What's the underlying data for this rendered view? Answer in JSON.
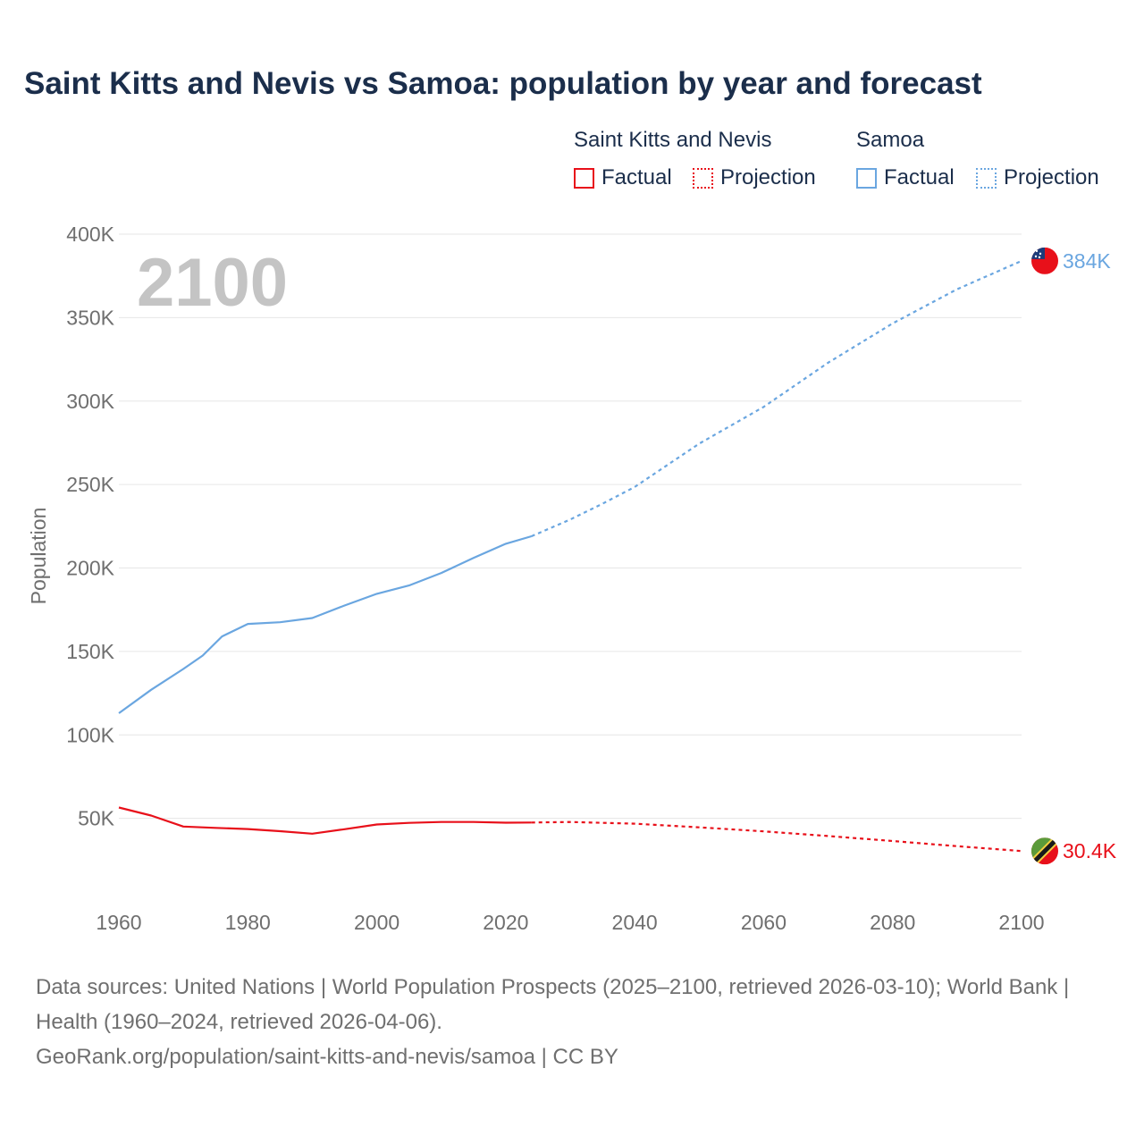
{
  "title": "Saint Kitts and Nevis vs Samoa: population by year and forecast",
  "legend": {
    "groups": [
      {
        "name": "Saint Kitts and Nevis",
        "color": "#e8101a",
        "items": [
          {
            "label": "Factual",
            "style": "solid"
          },
          {
            "label": "Projection",
            "style": "dotted"
          }
        ]
      },
      {
        "name": "Samoa",
        "color": "#6aa6e0",
        "items": [
          {
            "label": "Factual",
            "style": "solid"
          },
          {
            "label": "Projection",
            "style": "dotted"
          }
        ]
      }
    ]
  },
  "year_watermark": "2100",
  "chart_data": {
    "type": "line",
    "title": "Saint Kitts and Nevis vs Samoa: population by year and forecast",
    "xlabel": "",
    "ylabel": "Population",
    "xlim": [
      1960,
      2100
    ],
    "ylim": [
      0,
      400000
    ],
    "x_ticks": [
      1960,
      1980,
      2000,
      2020,
      2040,
      2060,
      2080,
      2100
    ],
    "y_ticks": [
      {
        "value": 50000,
        "label": "50K"
      },
      {
        "value": 100000,
        "label": "100K"
      },
      {
        "value": 150000,
        "label": "150K"
      },
      {
        "value": 200000,
        "label": "200K"
      },
      {
        "value": 250000,
        "label": "250K"
      },
      {
        "value": 300000,
        "label": "300K"
      },
      {
        "value": 350000,
        "label": "350K"
      },
      {
        "value": 400000,
        "label": "400K"
      }
    ],
    "grid": true,
    "series": [
      {
        "name": "Saint Kitts and Nevis",
        "color": "#e8101a",
        "end_label": "30.4K",
        "factual": {
          "x": [
            1960,
            1965,
            1970,
            1975,
            1980,
            1985,
            1990,
            1995,
            2000,
            2005,
            2010,
            2015,
            2020,
            2024
          ],
          "y": [
            56500,
            51700,
            45100,
            44300,
            43600,
            42300,
            40800,
            43500,
            46300,
            47300,
            47800,
            47800,
            47400,
            47500
          ]
        },
        "projection": {
          "x": [
            2024,
            2030,
            2040,
            2050,
            2060,
            2070,
            2080,
            2090,
            2100
          ],
          "y": [
            47500,
            47800,
            46800,
            44600,
            42200,
            39400,
            36400,
            33300,
            30400
          ]
        }
      },
      {
        "name": "Samoa",
        "color": "#6aa6e0",
        "end_label": "384K",
        "factual": {
          "x": [
            1960,
            1965,
            1970,
            1973,
            1976,
            1980,
            1985,
            1990,
            1995,
            2000,
            2005,
            2010,
            2015,
            2020,
            2024
          ],
          "y": [
            113000,
            127000,
            139500,
            147500,
            159000,
            166500,
            167500,
            170000,
            177500,
            184500,
            189500,
            197000,
            206000,
            214500,
            219000
          ]
        },
        "projection": {
          "x": [
            2024,
            2030,
            2035,
            2040,
            2050,
            2060,
            2070,
            2080,
            2090,
            2100
          ],
          "y": [
            219000,
            229000,
            238500,
            248500,
            274500,
            296500,
            323000,
            346500,
            367000,
            384000
          ]
        }
      }
    ]
  },
  "footer": {
    "line1": "Data sources: United Nations | World Population Prospects (2025–2100, retrieved 2026-03-10); World Bank | Health (1960–2024, retrieved 2026-04-06).",
    "line2": "GeoRank.org/population/saint-kitts-and-nevis/samoa | CC BY"
  }
}
